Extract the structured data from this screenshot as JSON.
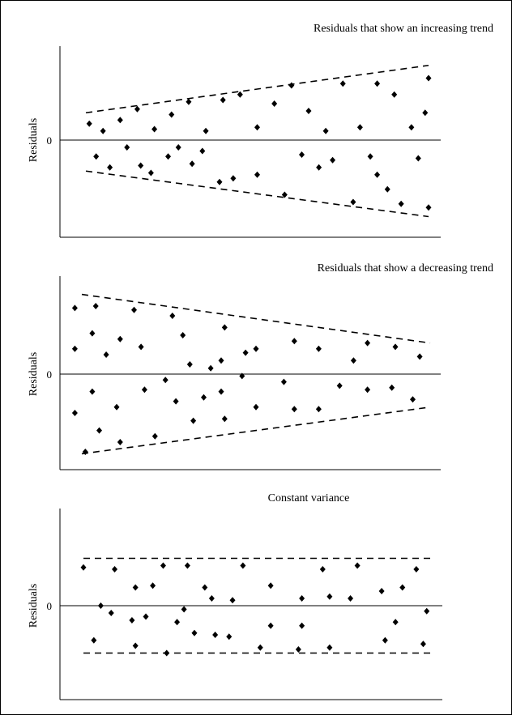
{
  "chart_data": [
    {
      "type": "scatter",
      "title": "Residuals that show an increasing trend",
      "ylabel": "Residuals",
      "xlabel": "",
      "zero_label": "0",
      "ylim": [
        -2.6,
        2.5
      ],
      "xlim": [
        0,
        100
      ],
      "bands": [
        {
          "x": [
            0,
            100
          ],
          "y": [
            0.75,
            2.05
          ]
        },
        {
          "x": [
            0,
            100
          ],
          "y": [
            -0.85,
            -2.1
          ]
        }
      ],
      "points": [
        [
          1,
          0.45
        ],
        [
          5,
          0.25
        ],
        [
          10,
          0.55
        ],
        [
          15,
          0.85
        ],
        [
          20,
          0.3
        ],
        [
          25,
          0.7
        ],
        [
          30,
          1.05
        ],
        [
          35,
          0.25
        ],
        [
          40,
          1.1
        ],
        [
          45,
          1.25
        ],
        [
          50,
          0.35
        ],
        [
          55,
          1.0
        ],
        [
          60,
          1.5
        ],
        [
          65,
          0.8
        ],
        [
          70,
          0.25
        ],
        [
          75,
          1.55
        ],
        [
          80,
          0.35
        ],
        [
          85,
          1.55
        ],
        [
          90,
          1.25
        ],
        [
          95,
          0.35
        ],
        [
          100,
          1.7
        ],
        [
          3,
          -0.45
        ],
        [
          7,
          -0.75
        ],
        [
          12,
          -0.2
        ],
        [
          16,
          -0.7
        ],
        [
          19,
          -0.9
        ],
        [
          24,
          -0.45
        ],
        [
          27,
          -0.2
        ],
        [
          31,
          -0.65
        ],
        [
          34,
          -0.3
        ],
        [
          39,
          -1.15
        ],
        [
          43,
          -1.05
        ],
        [
          50,
          -0.95
        ],
        [
          58,
          -1.5
        ],
        [
          63,
          -0.4
        ],
        [
          68,
          -0.75
        ],
        [
          72,
          -0.55
        ],
        [
          78,
          -1.7
        ],
        [
          83,
          -0.45
        ],
        [
          88,
          -1.35
        ],
        [
          92,
          -1.75
        ],
        [
          97,
          -0.5
        ],
        [
          100,
          -1.85
        ],
        [
          99,
          0.75
        ],
        [
          85,
          -0.95
        ]
      ]
    },
    {
      "type": "scatter",
      "title": "Residuals that show a decreasing trend",
      "ylabel": "Residuals",
      "xlabel": "",
      "zero_label": "0",
      "ylim": [
        -2.6,
        2.5
      ],
      "xlim": [
        0,
        100
      ],
      "bands": [
        {
          "x": [
            0,
            100
          ],
          "y": [
            2.05,
            0.8
          ]
        },
        {
          "x": [
            0,
            100
          ],
          "y": [
            -2.05,
            -0.85
          ]
        }
      ],
      "points": [
        [
          -2,
          1.7
        ],
        [
          -2,
          0.65
        ],
        [
          3,
          1.05
        ],
        [
          4,
          1.75
        ],
        [
          7,
          0.5
        ],
        [
          11,
          0.9
        ],
        [
          15,
          1.65
        ],
        [
          17,
          0.7
        ],
        [
          26,
          1.5
        ],
        [
          29,
          1.0
        ],
        [
          31,
          0.25
        ],
        [
          37,
          0.15
        ],
        [
          40,
          0.35
        ],
        [
          41,
          1.2
        ],
        [
          47,
          0.55
        ],
        [
          50,
          0.65
        ],
        [
          61,
          0.85
        ],
        [
          68,
          0.65
        ],
        [
          78,
          0.35
        ],
        [
          82,
          0.8
        ],
        [
          90,
          0.7
        ],
        [
          97,
          0.45
        ],
        [
          -2,
          -1.0
        ],
        [
          1,
          -2.0
        ],
        [
          3,
          -0.45
        ],
        [
          5,
          -1.45
        ],
        [
          10,
          -0.85
        ],
        [
          11,
          -1.75
        ],
        [
          18,
          -0.4
        ],
        [
          21,
          -1.6
        ],
        [
          24,
          -0.15
        ],
        [
          27,
          -0.7
        ],
        [
          32,
          -1.2
        ],
        [
          35,
          -0.6
        ],
        [
          40,
          -0.45
        ],
        [
          41,
          -1.15
        ],
        [
          46,
          -0.05
        ],
        [
          50,
          -0.85
        ],
        [
          58,
          -0.2
        ],
        [
          61,
          -0.9
        ],
        [
          68,
          -0.9
        ],
        [
          74,
          -0.3
        ],
        [
          82,
          -0.4
        ],
        [
          89,
          -0.35
        ],
        [
          95,
          -0.65
        ]
      ]
    },
    {
      "type": "scatter",
      "title": "Constant variance",
      "ylabel": "Residuals",
      "xlabel": "",
      "zero_label": "0",
      "ylim": [
        -2.6,
        2.5
      ],
      "xlim": [
        0,
        100
      ],
      "bands": [
        {
          "x": [
            0,
            100
          ],
          "y": [
            1.3,
            1.3
          ]
        },
        {
          "x": [
            0,
            100
          ],
          "y": [
            -1.3,
            -1.3
          ]
        }
      ],
      "points": [
        [
          0,
          1.05
        ],
        [
          5,
          0.0
        ],
        [
          9,
          1.0
        ],
        [
          15,
          0.5
        ],
        [
          20,
          0.55
        ],
        [
          23,
          1.1
        ],
        [
          30,
          1.1
        ],
        [
          35,
          0.5
        ],
        [
          37,
          0.2
        ],
        [
          43,
          0.15
        ],
        [
          46,
          1.1
        ],
        [
          54,
          0.55
        ],
        [
          63,
          0.2
        ],
        [
          69,
          1.0
        ],
        [
          71,
          0.25
        ],
        [
          77,
          0.2
        ],
        [
          79,
          1.1
        ],
        [
          86,
          0.4
        ],
        [
          92,
          0.5
        ],
        [
          96,
          1.0
        ],
        [
          3,
          -0.95
        ],
        [
          8,
          -0.2
        ],
        [
          14,
          -0.4
        ],
        [
          18,
          -0.3
        ],
        [
          27,
          -0.45
        ],
        [
          29,
          -0.1
        ],
        [
          32,
          -0.75
        ],
        [
          38,
          -0.8
        ],
        [
          42,
          -0.85
        ],
        [
          51,
          -1.15
        ],
        [
          54,
          -0.55
        ],
        [
          62,
          -1.2
        ],
        [
          63,
          -0.55
        ],
        [
          71,
          -1.15
        ],
        [
          87,
          -0.95
        ],
        [
          90,
          -0.45
        ],
        [
          98,
          -1.05
        ],
        [
          99,
          -0.15
        ],
        [
          15,
          -1.1
        ],
        [
          24,
          -1.3
        ]
      ]
    }
  ]
}
